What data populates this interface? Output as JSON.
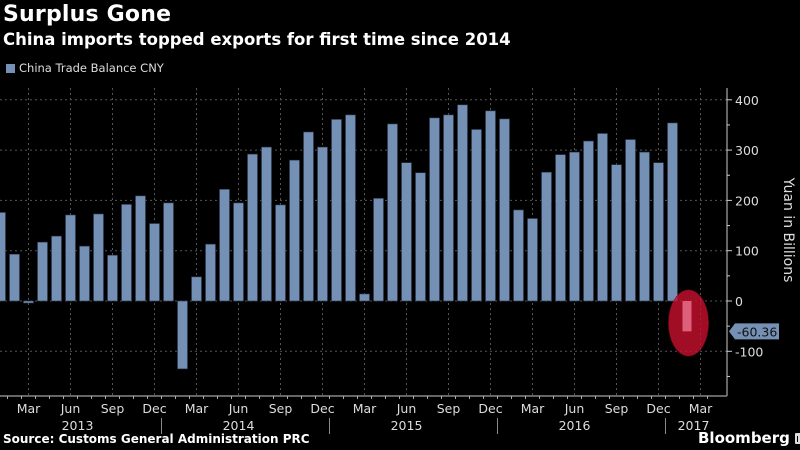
{
  "header": {
    "title": "Surplus Gone",
    "subtitle": "China imports topped exports for first time since 2014"
  },
  "footer": {
    "source": "Source: Customs General Administration PRC",
    "brand": "Bloomberg"
  },
  "colors": {
    "bar": "#7590b5",
    "highlight": "#c8102e",
    "background": "#000000"
  },
  "chart_data": {
    "type": "bar",
    "title": "Surplus Gone",
    "subtitle": "China imports topped exports for first time since 2014",
    "legend": [
      "China Trade Balance CNY"
    ],
    "legend_position": "top-left",
    "ylabel": "Yuan in Billions",
    "ylim": [
      -175,
      430
    ],
    "yticks": [
      400,
      300,
      200,
      100,
      0,
      -100
    ],
    "grid": true,
    "x": [
      "2013-01",
      "2013-02",
      "2013-03",
      "2013-04",
      "2013-05",
      "2013-06",
      "2013-07",
      "2013-08",
      "2013-09",
      "2013-10",
      "2013-11",
      "2013-12",
      "2014-01",
      "2014-02",
      "2014-03",
      "2014-04",
      "2014-05",
      "2014-06",
      "2014-07",
      "2014-08",
      "2014-09",
      "2014-10",
      "2014-11",
      "2014-12",
      "2015-01",
      "2015-02",
      "2015-03",
      "2015-04",
      "2015-05",
      "2015-06",
      "2015-07",
      "2015-08",
      "2015-09",
      "2015-10",
      "2015-11",
      "2015-12",
      "2016-01",
      "2016-02",
      "2016-03",
      "2016-04",
      "2016-05",
      "2016-06",
      "2016-07",
      "2016-08",
      "2016-09",
      "2016-10",
      "2016-11",
      "2016-12",
      "2017-01",
      "2017-02"
    ],
    "values": [
      176,
      93,
      -4,
      117,
      129,
      171,
      109,
      173,
      91,
      192,
      209,
      154,
      195,
      -135,
      48,
      113,
      222,
      195,
      292,
      306,
      191,
      280,
      336,
      306,
      361,
      370,
      14,
      204,
      352,
      275,
      255,
      364,
      370,
      390,
      341,
      378,
      362,
      181,
      164,
      256,
      291,
      296,
      318,
      333,
      271,
      321,
      296,
      275,
      354,
      -60.36
    ],
    "highlight_index": 49,
    "last_value_label": "-60.36",
    "month_ticks": [
      {
        "label": "Mar",
        "index": 2
      },
      {
        "label": "Jun",
        "index": 5
      },
      {
        "label": "Sep",
        "index": 8
      },
      {
        "label": "Dec",
        "index": 11
      },
      {
        "label": "Mar",
        "index": 14
      },
      {
        "label": "Jun",
        "index": 17
      },
      {
        "label": "Sep",
        "index": 20
      },
      {
        "label": "Dec",
        "index": 23
      },
      {
        "label": "Mar",
        "index": 26
      },
      {
        "label": "Jun",
        "index": 29
      },
      {
        "label": "Sep",
        "index": 32
      },
      {
        "label": "Dec",
        "index": 35
      },
      {
        "label": "Mar",
        "index": 38
      },
      {
        "label": "Jun",
        "index": 41
      },
      {
        "label": "Sep",
        "index": 44
      },
      {
        "label": "Dec",
        "index": 47
      },
      {
        "label": "Mar",
        "index": 50
      }
    ],
    "year_labels": [
      {
        "label": "2013",
        "index": 5.5
      },
      {
        "label": "2014",
        "index": 17
      },
      {
        "label": "2015",
        "index": 29
      },
      {
        "label": "2016",
        "index": 41
      },
      {
        "label": "2017",
        "index": 49.5
      }
    ]
  }
}
